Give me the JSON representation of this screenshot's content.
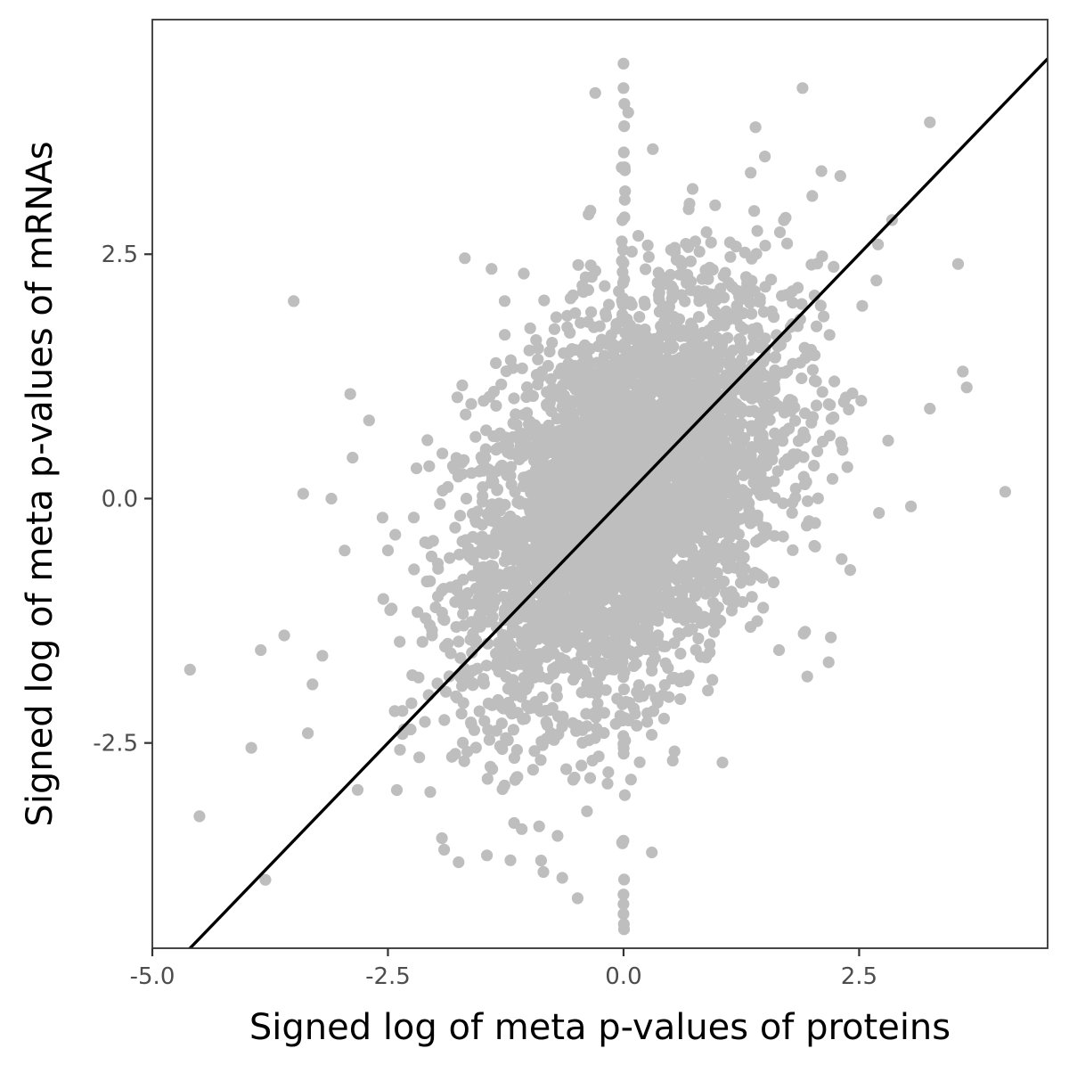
{
  "chart_data": {
    "type": "scatter",
    "title": "",
    "xlabel": "Signed log of meta p-values of proteins",
    "ylabel": "Signed log of meta p-values of mRNAs",
    "xlim": [
      -5.0,
      4.5
    ],
    "ylim": [
      -4.6,
      4.9
    ],
    "xticks": [
      -5.0,
      -2.5,
      0.0,
      2.5
    ],
    "xtick_labels": [
      "-5.0",
      "-2.5",
      "0.0",
      "2.5"
    ],
    "yticks": [
      -2.5,
      0.0,
      2.5
    ],
    "ytick_labels": [
      "-2.5",
      "0.0",
      "2.5"
    ],
    "grid": false,
    "legend": "none",
    "point_color": "#bebebe",
    "line_color": "#000000",
    "reference_line": {
      "type": "y=x",
      "slope": 1,
      "intercept": 0
    },
    "points_described": [
      {
        "x": -4.6,
        "y": -1.75
      },
      {
        "x": -4.5,
        "y": -3.25
      },
      {
        "x": -3.8,
        "y": -3.9
      },
      {
        "x": -3.95,
        "y": -2.55
      },
      {
        "x": -3.85,
        "y": -1.55
      },
      {
        "x": -3.6,
        "y": -1.4
      },
      {
        "x": -3.5,
        "y": 2.02
      },
      {
        "x": -3.4,
        "y": 0.05
      },
      {
        "x": -3.35,
        "y": -2.4
      },
      {
        "x": -3.3,
        "y": -1.9
      },
      {
        "x": -3.1,
        "y": 0.0
      },
      {
        "x": -2.9,
        "y": 1.07
      },
      {
        "x": -2.7,
        "y": 0.8
      },
      {
        "x": -1.4,
        "y": 2.35
      },
      {
        "x": -1.45,
        "y": -3.65
      },
      {
        "x": -1.2,
        "y": -3.7
      },
      {
        "x": -1.75,
        "y": -3.72
      },
      {
        "x": -0.85,
        "y": -3.82
      },
      {
        "x": -0.65,
        "y": -3.88
      },
      {
        "x": -0.7,
        "y": -3.45
      },
      {
        "x": 0.0,
        "y": 4.45
      },
      {
        "x": 0.0,
        "y": 4.2
      },
      {
        "x": -0.3,
        "y": 4.15
      },
      {
        "x": 0.05,
        "y": 3.95
      },
      {
        "x": 0.0,
        "y": -4.05
      },
      {
        "x": 0.0,
        "y": -4.15
      },
      {
        "x": 0.0,
        "y": -4.25
      },
      {
        "x": 0.0,
        "y": -3.5
      },
      {
        "x": 0.3,
        "y": -3.62
      },
      {
        "x": 1.05,
        "y": -2.7
      },
      {
        "x": 1.9,
        "y": 4.2
      },
      {
        "x": 3.25,
        "y": 3.85
      },
      {
        "x": 3.55,
        "y": 2.4
      },
      {
        "x": 3.6,
        "y": 1.3
      },
      {
        "x": 3.25,
        "y": 0.92
      },
      {
        "x": 4.05,
        "y": 0.07
      },
      {
        "x": 3.05,
        "y": -0.08
      },
      {
        "x": 2.3,
        "y": 3.3
      },
      {
        "x": 2.1,
        "y": 3.35
      },
      {
        "x": 2.7,
        "y": 2.6
      },
      {
        "x": 2.85,
        "y": 2.85
      },
      {
        "x": 2.2,
        "y": -1.42
      },
      {
        "x": 1.95,
        "y": -1.82
      },
      {
        "x": 1.65,
        "y": -1.55
      },
      {
        "x": 1.4,
        "y": 3.8
      },
      {
        "x": 1.5,
        "y": 3.5
      }
    ],
    "cloud_description": "dense cloud of several thousand points centered near (0,0), elongated along the positive diagonal, roughly x in [-2.5, 2.5] and y in [-3, 3]"
  }
}
